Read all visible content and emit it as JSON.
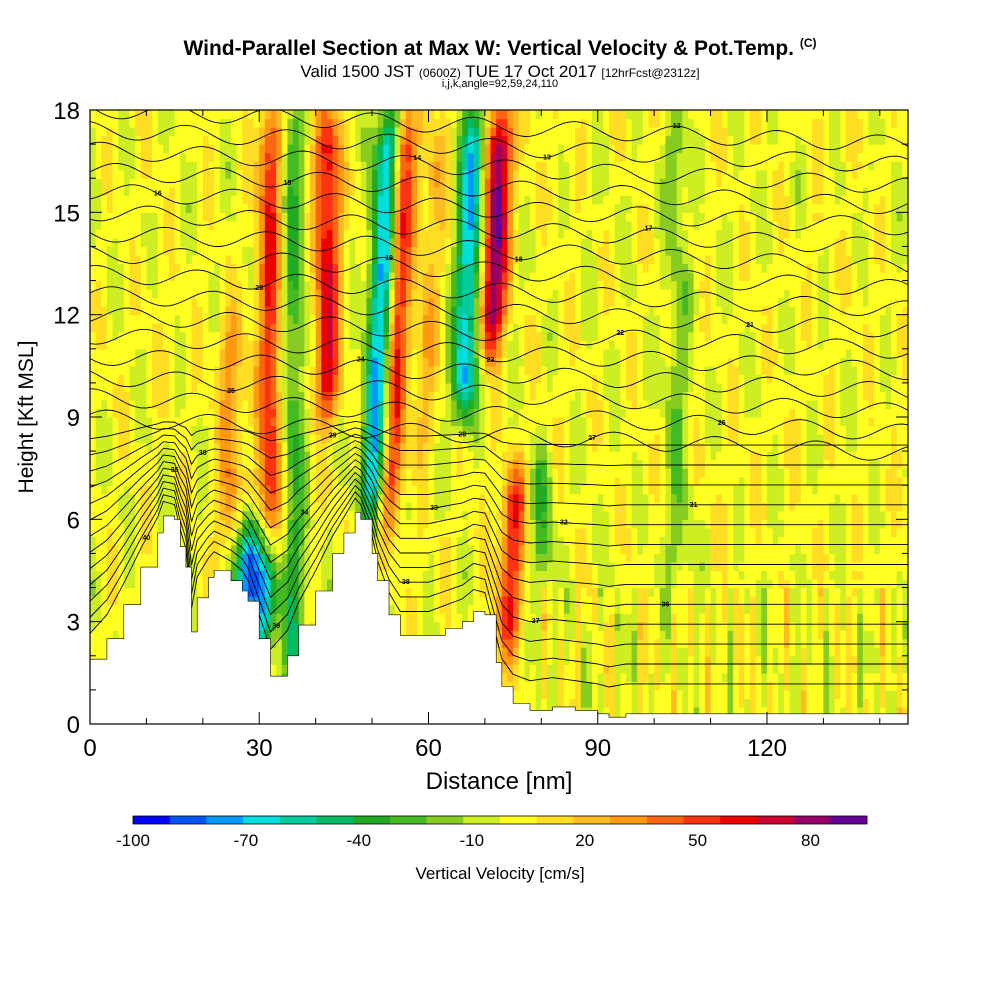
{
  "chart_data": {
    "type": "heatmap",
    "title": "Wind-Parallel Section at Max W: Vertical Velocity & Pot.Temp.",
    "copyright_mark": "(C)",
    "subtitle_parts": [
      "Valid 1500 JST ",
      "(0600Z)",
      " TUE 17 Oct 2017 ",
      "[12hrFcst@2312z]"
    ],
    "subtitle2": "i,j,k,angle=92,59,24,110",
    "xlabel": "Distance [nm]",
    "ylabel": "Height [Kft MSL]",
    "xlim": [
      0,
      145
    ],
    "ylim": [
      0,
      18
    ],
    "x_ticks": [
      "0",
      "30",
      "60",
      "90",
      "120"
    ],
    "x_tick_values": [
      0,
      30,
      60,
      90,
      120
    ],
    "y_ticks": [
      "0",
      "3",
      "6",
      "9",
      "12",
      "15",
      "18"
    ],
    "y_tick_values": [
      0,
      3,
      6,
      9,
      12,
      15,
      18
    ],
    "colorbar": {
      "label": "Vertical Velocity [cm/s]",
      "tick_labels": [
        "-100",
        "-70",
        "-40",
        "-10",
        "20",
        "50",
        "80"
      ],
      "tick_values": [
        -100,
        -70,
        -40,
        -10,
        20,
        50,
        80
      ],
      "range": [
        -100,
        95
      ],
      "step": 10,
      "colors": [
        "#0000ff",
        "#0055ff",
        "#0099ff",
        "#00dddd",
        "#00cca0",
        "#00bb66",
        "#22aa22",
        "#44bb22",
        "#88cc22",
        "#ccee22",
        "#ffff22",
        "#ffdd22",
        "#ffbb22",
        "#ff9911",
        "#ff6611",
        "#ff3311",
        "#ee0000",
        "#cc0033",
        "#990066",
        "#660099"
      ]
    },
    "vertical_velocity_features": [
      {
        "x": 32,
        "ymin": 5.5,
        "ymax": 18,
        "w": 55
      },
      {
        "x": 42,
        "ymin": 9,
        "ymax": 18,
        "w": 65
      },
      {
        "x": 36,
        "ymin": 0,
        "ymax": 18,
        "w": -35
      },
      {
        "x": 50,
        "ymin": 6,
        "ymax": 18,
        "w": -80
      },
      {
        "x": 53,
        "ymin": 6,
        "ymax": 18,
        "w": 60
      },
      {
        "x": 59,
        "ymin": 8,
        "ymax": 18,
        "w": 20
      },
      {
        "x": 66,
        "ymin": 9,
        "ymax": 18,
        "w": -75
      },
      {
        "x": 71,
        "ymin": 11,
        "ymax": 18,
        "w": 90
      },
      {
        "x": 74,
        "ymin": 2,
        "ymax": 7.5,
        "w": 55
      },
      {
        "x": 28,
        "ymin": 3,
        "ymax": 6,
        "w": -90
      },
      {
        "x": 31,
        "ymin": 2,
        "ymax": 5,
        "w": -60
      },
      {
        "x": 25,
        "ymin": 5,
        "ymax": 12,
        "w": 30
      },
      {
        "x": 80,
        "ymin": 4,
        "ymax": 8,
        "w": -30
      },
      {
        "x": 104,
        "ymin": 4,
        "ymax": 18,
        "w": -20
      }
    ],
    "terrain_profile": {
      "x": [
        0,
        3,
        6,
        9,
        12,
        13,
        15,
        16,
        17,
        18,
        19,
        21,
        22,
        25,
        27,
        28,
        30,
        32,
        35,
        37,
        40,
        43,
        45,
        47,
        48,
        50,
        51,
        53,
        55,
        57,
        60,
        63,
        66,
        68,
        70,
        72,
        73,
        75,
        78,
        82,
        86,
        90,
        92,
        95,
        100,
        110,
        120,
        130,
        140,
        145
      ],
      "y": [
        1.9,
        2.5,
        3.5,
        4.6,
        5.6,
        6.1,
        6.0,
        5.2,
        4.6,
        2.7,
        3.7,
        4.3,
        4.5,
        4.2,
        3.9,
        3.6,
        2.5,
        1.4,
        2.0,
        2.9,
        3.9,
        5.0,
        5.6,
        6.2,
        6.0,
        5.0,
        4.2,
        3.2,
        2.6,
        2.6,
        2.6,
        2.8,
        3.0,
        3.3,
        3.2,
        1.8,
        1.1,
        0.6,
        0.4,
        0.5,
        0.4,
        0.3,
        0.2,
        0.3,
        0.3,
        0.3,
        0.3,
        0.3,
        0.3,
        0.3
      ]
    },
    "theta_contour_labels": [
      "40",
      "39",
      "38",
      "37",
      "36",
      "35",
      "34",
      "33",
      "32",
      "31",
      "30",
      "29",
      "28",
      "27",
      "26",
      "25",
      "24",
      "23",
      "22",
      "21",
      "20",
      "19",
      "18",
      "17",
      "16",
      "15",
      "14",
      "13",
      "12"
    ]
  }
}
